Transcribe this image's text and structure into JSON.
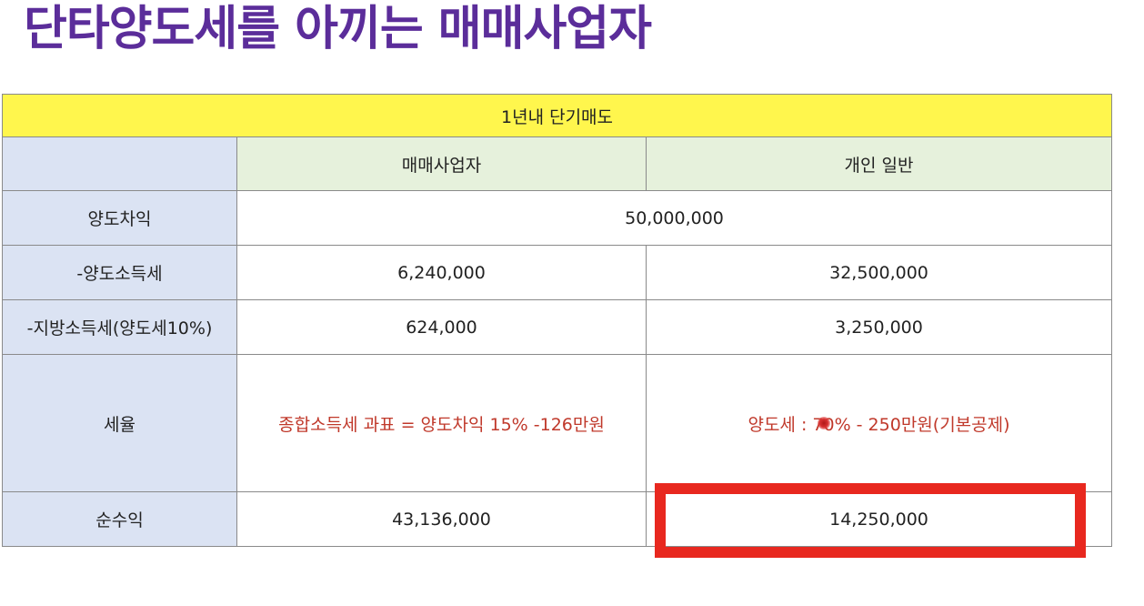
{
  "title": "단타양도세를 아끼는 매매사업자",
  "table": {
    "header": "1년내 단기매도",
    "columns": {
      "business": "매매사업자",
      "individual": "개인 일반"
    },
    "rows": {
      "gain": {
        "label": "양도차익",
        "value": "50,000,000"
      },
      "income_tax": {
        "label": "-양도소득세",
        "business": "6,240,000",
        "individual": "32,500,000"
      },
      "local_tax": {
        "label": "-지방소득세(양도세10%)",
        "business": "624,000",
        "individual": "3,250,000"
      },
      "rate": {
        "label": "세율",
        "business": "종합소득세 과표 = 양도차익 15% -126만원",
        "individual": "양도세 : 70% - 250만원(기본공제)"
      },
      "net": {
        "label": "순수익",
        "business": "43,136,000",
        "individual": "14,250,000"
      }
    }
  },
  "colors": {
    "title": "#5b2d9a",
    "header_bg": "#fff64d",
    "label_bg": "#dbe3f3",
    "colhead_bg": "#e6f1dc",
    "rate_text": "#c0392b",
    "highlight_border": "#e8281f"
  }
}
